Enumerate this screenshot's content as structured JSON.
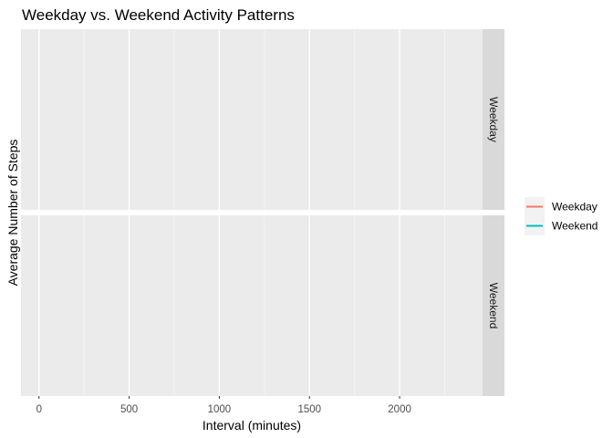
{
  "chart_data": {
    "type": "line",
    "title": "Weekday vs. Weekend Activity Patterns",
    "xlabel": "Interval (minutes)",
    "ylabel": "Average Number of Steps",
    "xlim": [
      -100,
      2460
    ],
    "x_ticks": [
      0,
      500,
      1000,
      1500,
      2000
    ],
    "x_tick_labels": [
      "0",
      "500",
      "1000",
      "1500",
      "2000"
    ],
    "x_minor_ticks": [
      250,
      750,
      1250,
      1750,
      2250
    ],
    "facets": [
      "Weekday",
      "Weekend"
    ],
    "series": [
      {
        "name": "Weekday",
        "color": "#F8766D",
        "x": [],
        "y": []
      },
      {
        "name": "Weekend",
        "color": "#00BFC4",
        "x": [],
        "y": []
      }
    ],
    "grid": true,
    "legend_position": "right",
    "panel_background": "#EBEBEB",
    "strip_background": "#D9D9D9"
  }
}
